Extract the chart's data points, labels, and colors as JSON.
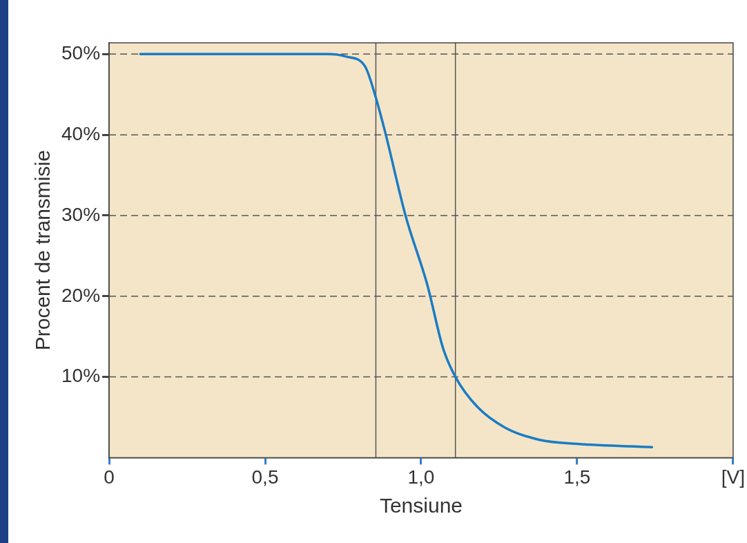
{
  "chart_data": {
    "type": "line",
    "xlabel": "Tensiune",
    "ylabel": "Procent de transmisie",
    "x": [
      0.1,
      0.7,
      0.76,
      0.82,
      0.855,
      0.885,
      0.95,
      1.02,
      1.07,
      1.11,
      1.18,
      1.27,
      1.38,
      1.5,
      1.74
    ],
    "series": [
      {
        "color": "#1a7cc4",
        "values": [
          50,
          50,
          49.7,
          48.5,
          44.6,
          40.3,
          30,
          21.4,
          13.6,
          10,
          6.3,
          3.7,
          2.2,
          1.7,
          1.3
        ]
      }
    ],
    "xlim": [
      0,
      2
    ],
    "xticks": [
      0,
      {
        "value": 0.5,
        "label": "0,5"
      },
      {
        "value": 1,
        "label": "1,0"
      },
      {
        "value": 1.5,
        "label": "1,5"
      },
      {
        "value": 2,
        "label": "[V]"
      }
    ],
    "ylim": [
      0,
      51.4
    ],
    "yticks": [
      {
        "value": 10,
        "label": "10%"
      },
      {
        "value": 20,
        "label": "20%"
      },
      {
        "value": 30,
        "label": "30%"
      },
      {
        "value": 40,
        "label": "40%"
      },
      {
        "value": 50,
        "label": "50%"
      }
    ],
    "grid": "y",
    "marker": "none",
    "line_style": "solid",
    "legend": false,
    "ref_lines": [
      {
        "axis": "x",
        "value": 0.855,
        "color": "#555555"
      },
      {
        "axis": "x",
        "value": 1.11,
        "color": "#555555"
      }
    ]
  }
}
